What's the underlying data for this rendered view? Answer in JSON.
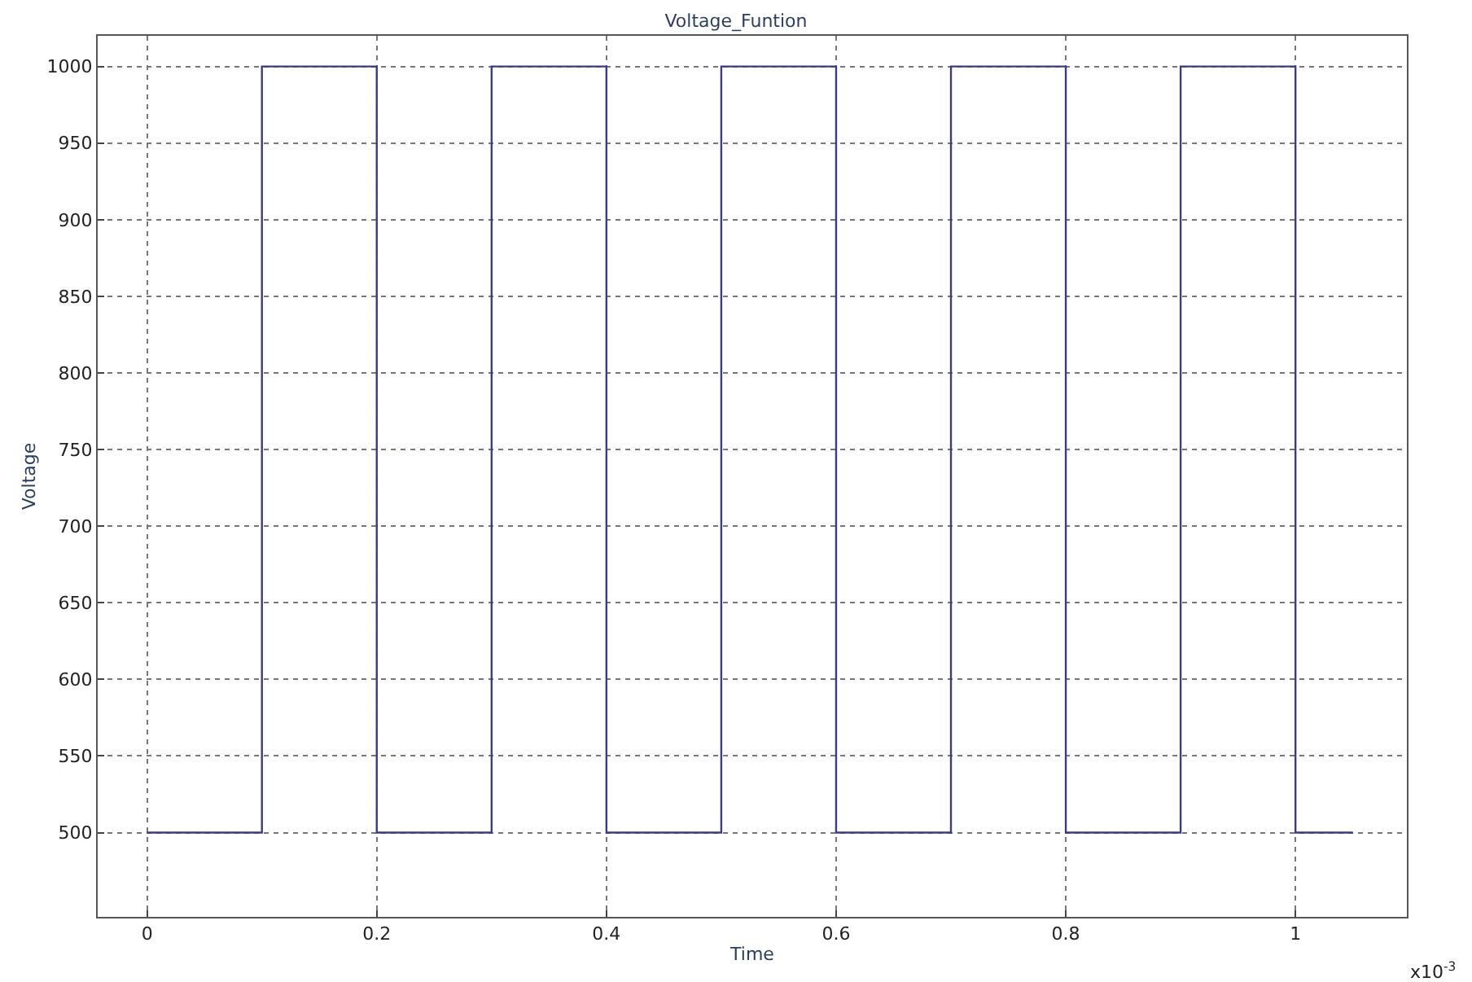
{
  "chart_data": {
    "type": "line",
    "title": "Voltage_Funtion",
    "xlabel": "Time",
    "ylabel": "Voltage",
    "x": [
      0,
      0.1,
      0.1,
      0.2,
      0.2,
      0.3,
      0.3,
      0.4,
      0.4,
      0.5,
      0.5,
      0.6,
      0.6,
      0.7,
      0.7,
      0.8,
      0.8,
      0.9,
      0.9,
      1.0,
      1.0,
      1.05
    ],
    "series": [
      {
        "color": "#3c3c80",
        "values": [
          500,
          500,
          1000,
          1000,
          500,
          500,
          1000,
          1000,
          500,
          500,
          1000,
          1000,
          500,
          500,
          1000,
          1000,
          500,
          500,
          1000,
          1000,
          500,
          500
        ]
      }
    ],
    "xlim": [
      -0.043,
      1.097
    ],
    "ylim": [
      445,
      1020
    ],
    "xticks": [
      0,
      0.2,
      0.4,
      0.6,
      0.8,
      1
    ],
    "yticks": [
      500,
      550,
      600,
      650,
      700,
      750,
      800,
      850,
      900,
      950,
      1000
    ],
    "grid": true,
    "marker": "none",
    "line_style": "solid",
    "annotations": [
      "x10$^{-3}$"
    ]
  }
}
